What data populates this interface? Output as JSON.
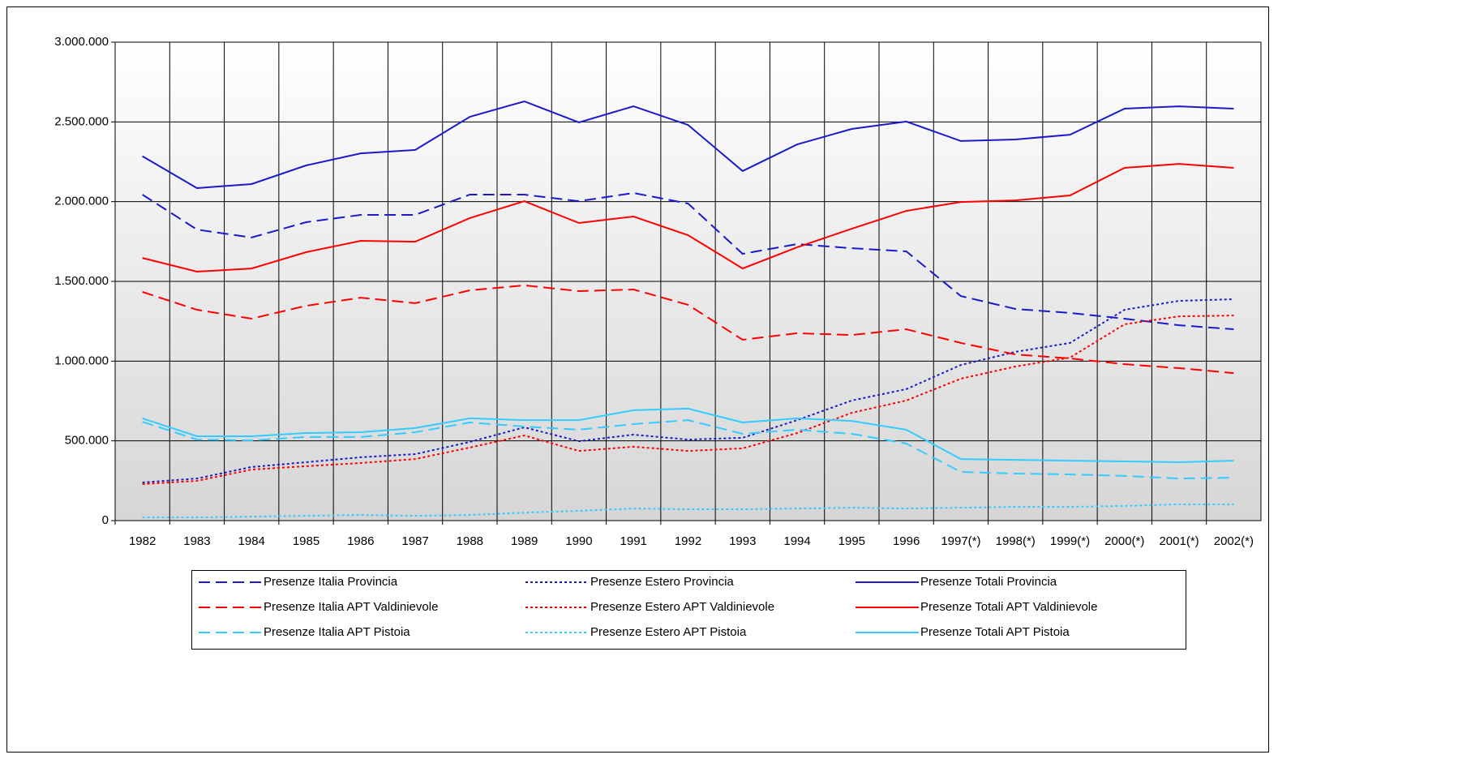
{
  "chart_data": {
    "type": "line",
    "categories": [
      "1982",
      "1983",
      "1984",
      "1985",
      "1986",
      "1987",
      "1988",
      "1989",
      "1990",
      "1991",
      "1992",
      "1993",
      "1994",
      "1995",
      "1996",
      "1997(*)",
      "1998(*)",
      "1999(*)",
      "2000(*)",
      "2001(*)",
      "2002(*)"
    ],
    "ylim": [
      0,
      3000000
    ],
    "yticks": [
      0,
      {
        "value": 500000,
        "label": "500.000"
      },
      {
        "value": 1000000,
        "label": "1.000.000"
      },
      {
        "value": 1500000,
        "label": "1.500.000"
      },
      {
        "value": 2000000,
        "label": "2.000.000"
      },
      {
        "value": 2500000,
        "label": "2.500.000"
      },
      {
        "value": 3000000,
        "label": "3.000.000"
      }
    ],
    "grid": true,
    "legend": "bottom",
    "series": [
      {
        "name": "Presenze Italia Provincia",
        "color": "#1a1acc",
        "style": "dashed",
        "values": [
          2044000,
          1825000,
          1775000,
          1871000,
          1917000,
          1917000,
          2044000,
          2044000,
          2003000,
          2054000,
          1988000,
          1673000,
          1734000,
          1708000,
          1688000,
          1408000,
          1327000,
          1302000,
          1266000,
          1225000,
          1200000
        ]
      },
      {
        "name": "Presenze Estero Provincia",
        "color": "#1a1acc",
        "style": "dotted",
        "values": [
          239000,
          264000,
          336000,
          366000,
          397000,
          417000,
          493000,
          585000,
          498000,
          539000,
          508000,
          519000,
          630000,
          753000,
          824000,
          976000,
          1058000,
          1114000,
          1322000,
          1378000,
          1388000
        ]
      },
      {
        "name": "Presenze Totali Provincia",
        "color": "#1a1acc",
        "style": "solid",
        "values": [
          2285000,
          2085000,
          2110000,
          2227000,
          2303000,
          2324000,
          2532000,
          2629000,
          2497000,
          2598000,
          2481000,
          2192000,
          2359000,
          2456000,
          2502000,
          2380000,
          2390000,
          2420000,
          2583000,
          2598000,
          2583000
        ]
      },
      {
        "name": "Presenze Italia APT Valdinievole",
        "color": "#ff0000",
        "style": "dashed",
        "values": [
          1434000,
          1322000,
          1266000,
          1347000,
          1398000,
          1363000,
          1444000,
          1475000,
          1439000,
          1449000,
          1353000,
          1134000,
          1175000,
          1164000,
          1200000,
          1114000,
          1042000,
          1017000,
          981000,
          956000,
          925000
        ]
      },
      {
        "name": "Presenze Estero APT Valdinievole",
        "color": "#ff0000",
        "style": "dotted",
        "values": [
          229000,
          249000,
          320000,
          341000,
          361000,
          386000,
          458000,
          534000,
          437000,
          463000,
          437000,
          453000,
          549000,
          676000,
          753000,
          890000,
          966000,
          1022000,
          1231000,
          1281000,
          1286000
        ]
      },
      {
        "name": "Presenze Totali APT Valdinievole",
        "color": "#ff0000",
        "style": "solid",
        "values": [
          1647000,
          1561000,
          1581000,
          1683000,
          1754000,
          1749000,
          1897000,
          2003000,
          1866000,
          1907000,
          1790000,
          1581000,
          1714000,
          1830000,
          1942000,
          1998000,
          2008000,
          2039000,
          2212000,
          2237000,
          2212000
        ]
      },
      {
        "name": "Presenze Italia APT Pistoia",
        "color": "#33ccff",
        "style": "dashed",
        "values": [
          620000,
          508000,
          503000,
          524000,
          524000,
          554000,
          615000,
          590000,
          570000,
          605000,
          630000,
          544000,
          570000,
          544000,
          483000,
          305000,
          295000,
          290000,
          280000,
          264000,
          269000
        ]
      },
      {
        "name": "Presenze Estero APT Pistoia",
        "color": "#33ccff",
        "style": "dotted",
        "values": [
          20000,
          20000,
          25000,
          30000,
          35000,
          30000,
          35000,
          50000,
          61000,
          76000,
          71000,
          71000,
          76000,
          81000,
          76000,
          81000,
          86000,
          86000,
          92000,
          102000,
          102000
        ]
      },
      {
        "name": "Presenze Totali APT Pistoia",
        "color": "#33ccff",
        "style": "solid",
        "values": [
          641000,
          529000,
          529000,
          549000,
          554000,
          580000,
          641000,
          630000,
          630000,
          692000,
          702000,
          615000,
          641000,
          625000,
          570000,
          386000,
          381000,
          376000,
          371000,
          366000,
          376000
        ]
      }
    ]
  }
}
